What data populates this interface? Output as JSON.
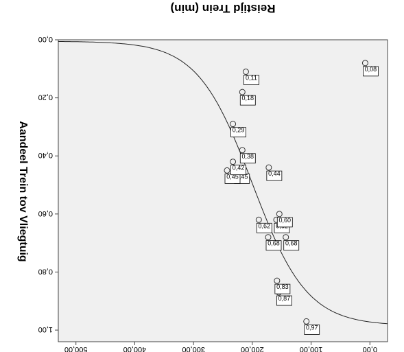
{
  "chart_data": {
    "type": "scatter",
    "title": "",
    "xlabel": "Reistijd Trein (min)",
    "ylabel": "Aandeel Trein tov Vliegtuig",
    "xlim": [
      -30,
      530
    ],
    "ylim": [
      0.0,
      1.04
    ],
    "y_inverted": true,
    "x_ticks": [
      0,
      100,
      200,
      300,
      400,
      500
    ],
    "x_tick_labels": [
      "0,00",
      "100,00",
      "200,00",
      "300,00",
      "400,00",
      "500,00"
    ],
    "y_ticks": [
      0.0,
      0.2,
      0.4,
      0.6,
      0.8,
      1.0
    ],
    "y_tick_labels": [
      "0,00",
      "0,20",
      "0,40",
      "0,60",
      "0,80",
      "1,00"
    ],
    "grid": false,
    "rendering": "mirrored (image flipped horizontally and vertically)",
    "points": [
      {
        "x": 108,
        "y": 0.97,
        "label": "0,97"
      },
      {
        "x": 155,
        "y": 0.87,
        "label": "0,87"
      },
      {
        "x": 158,
        "y": 0.83,
        "label": "0,83"
      },
      {
        "x": 143,
        "y": 0.68,
        "label": "0,68"
      },
      {
        "x": 173,
        "y": 0.68,
        "label": "0,68"
      },
      {
        "x": 159,
        "y": 0.62,
        "label": "0,62"
      },
      {
        "x": 189,
        "y": 0.62,
        "label": "0,62"
      },
      {
        "x": 154,
        "y": 0.6,
        "label": "0,60"
      },
      {
        "x": 172,
        "y": 0.44,
        "label": "0,44"
      },
      {
        "x": 227,
        "y": 0.45,
        "label": "0,45"
      },
      {
        "x": 243,
        "y": 0.45,
        "label": "0,45"
      },
      {
        "x": 233,
        "y": 0.42,
        "label": "0,42"
      },
      {
        "x": 217,
        "y": 0.38,
        "label": "0,38"
      },
      {
        "x": 233,
        "y": 0.29,
        "label": "0,29"
      },
      {
        "x": 217,
        "y": 0.18,
        "label": "0,18"
      },
      {
        "x": 211,
        "y": 0.11,
        "label": "0,11"
      },
      {
        "x": 8,
        "y": 0.08,
        "label": "0,08"
      }
    ],
    "fit_curve": {
      "type": "logistic",
      "midpoint_x": 200,
      "steepness": 0.0215,
      "y_at_left": 0.985,
      "y_at_right": 0.005
    }
  }
}
